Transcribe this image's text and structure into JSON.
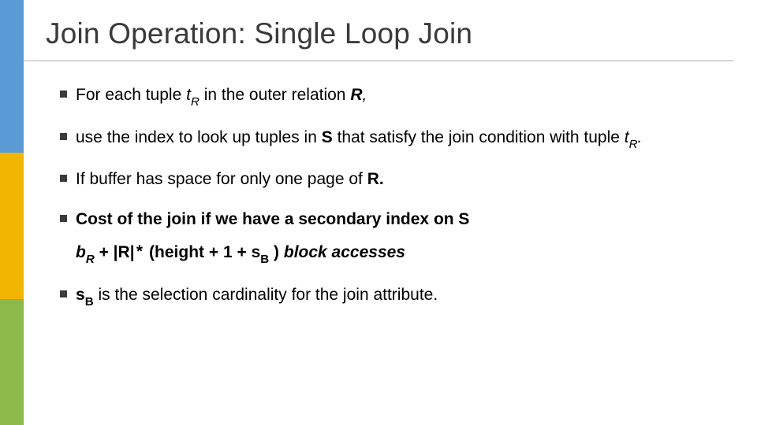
{
  "layout": {
    "sidebar": {
      "top_color": "#5b9bd5",
      "mid_color": "#f2b600",
      "bot_color": "#8bb94a",
      "top_height": 194,
      "mid_height": 186,
      "bot_height": 160
    },
    "title_color": "#3a3a3a",
    "underline_color": "#d7d7d7",
    "bullet_marker_color": "#3a3a3a"
  },
  "title": "Join Operation: Single Loop Join",
  "bullets": {
    "b1": {
      "pre": "For each tuple ",
      "t": "t",
      "sub": "R",
      "mid": " in the outer relation ",
      "R": "R",
      "post": ","
    },
    "b2": {
      "pre": "use the index to look up tuples in ",
      "S": "S",
      "mid": " that satisfy the join condition with tuple ",
      "t": "t",
      "sub": "R",
      "post": "."
    },
    "b3": {
      "pre": "If buffer has space for only one page of ",
      "R": "R",
      "post": "."
    },
    "b4": "Cost of the join if we have a secondary index on S",
    "formula": {
      "bR_b": "b",
      "bR_sub": "R",
      "plus": " + |R|",
      "ast": "*",
      "open": " (height + 1 + ",
      "sB_s": "s",
      "sB_sub": "B",
      "close": " ) ",
      "tail": "block accesses"
    },
    "b5": {
      "s": "s",
      "sub": "B",
      "rest": "  is the selection cardinality  for the join attribute."
    }
  }
}
